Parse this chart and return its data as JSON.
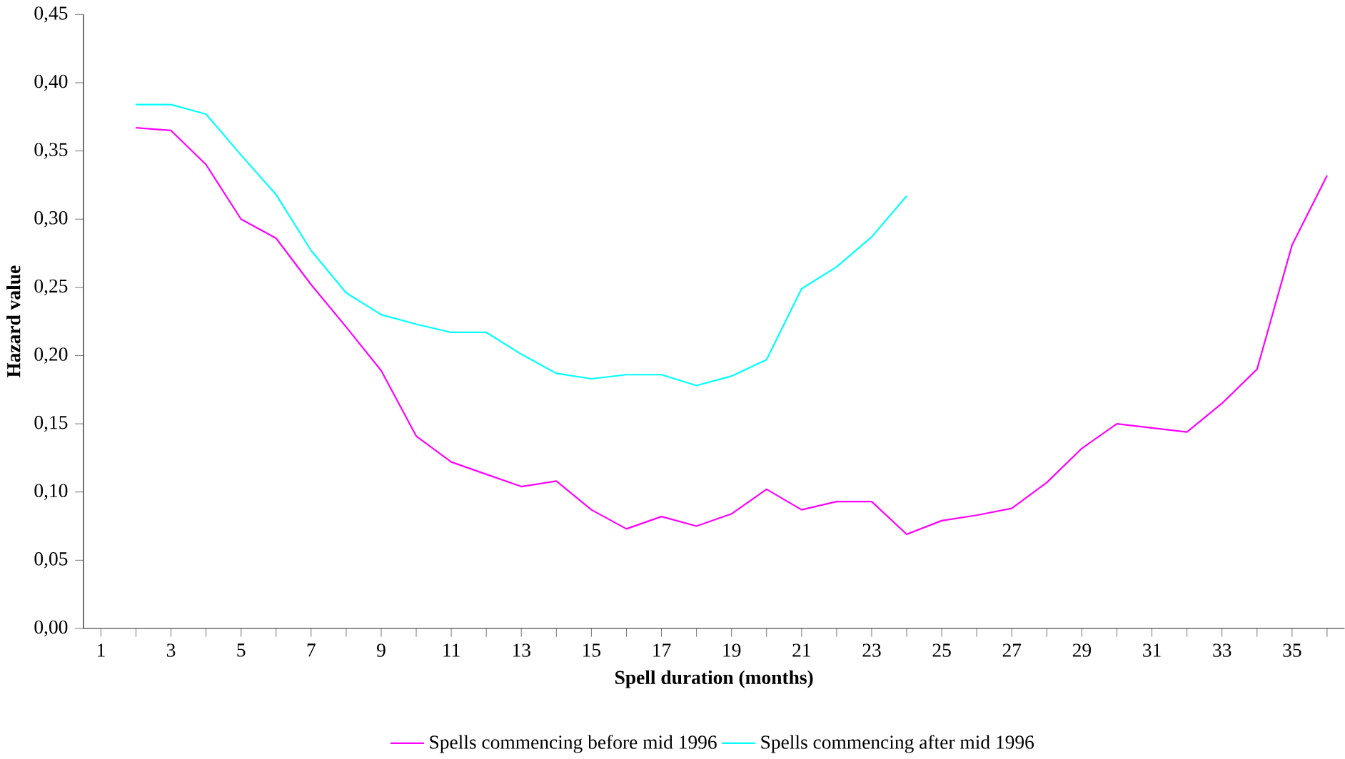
{
  "chart_data": {
    "type": "line",
    "xlabel": "Spell duration (months)",
    "ylabel": "Hazard value",
    "categories": [
      "1",
      null,
      "3",
      null,
      "5",
      null,
      "7",
      null,
      "9",
      null,
      "11",
      null,
      "13",
      null,
      "15",
      null,
      "17",
      null,
      "19",
      null,
      "21",
      null,
      "23",
      null,
      "25",
      null,
      "27",
      null,
      "29",
      null,
      "31",
      null,
      "33",
      null,
      "35",
      null
    ],
    "series": [
      {
        "name": "Spells commencing before mid 1996",
        "color": "#ff00ff",
        "values": [
          null,
          0.367,
          0.365,
          0.34,
          0.3,
          0.286,
          0.252,
          0.221,
          0.189,
          0.141,
          0.122,
          0.113,
          0.104,
          0.108,
          0.087,
          0.073,
          0.082,
          0.075,
          0.084,
          0.102,
          0.087,
          0.093,
          0.093,
          0.069,
          0.079,
          0.083,
          0.088,
          0.107,
          0.132,
          0.15,
          0.147,
          0.144,
          0.165,
          0.19,
          0.281,
          0.332
        ]
      },
      {
        "name": "Spells commencing after mid 1996",
        "color": "#00ffff",
        "values": [
          null,
          0.384,
          0.384,
          0.377,
          0.347,
          0.318,
          0.277,
          0.246,
          0.23,
          0.223,
          0.217,
          0.217,
          0.201,
          0.187,
          0.183,
          0.186,
          0.186,
          0.178,
          0.185,
          0.197,
          0.249,
          0.265,
          0.287,
          0.317,
          null,
          null,
          null,
          null,
          null,
          null,
          null,
          null,
          null,
          null,
          null,
          null
        ]
      }
    ],
    "ylim": [
      0,
      0.45
    ],
    "yticks": [
      {
        "value": 0,
        "label": "0,00"
      },
      {
        "value": 0.05,
        "label": "0,05"
      },
      {
        "value": 0.1,
        "label": "0,10"
      },
      {
        "value": 0.15,
        "label": "0,15"
      },
      {
        "value": 0.2,
        "label": "0,20"
      },
      {
        "value": 0.25,
        "label": "0,25"
      },
      {
        "value": 0.3,
        "label": "0,30"
      },
      {
        "value": 0.35,
        "label": "0,35"
      },
      {
        "value": 0.4,
        "label": "0,40"
      },
      {
        "value": 0.45,
        "label": "0,45"
      }
    ],
    "legend": "bottom",
    "grid": false,
    "marker": "none",
    "line_style": "solid"
  }
}
